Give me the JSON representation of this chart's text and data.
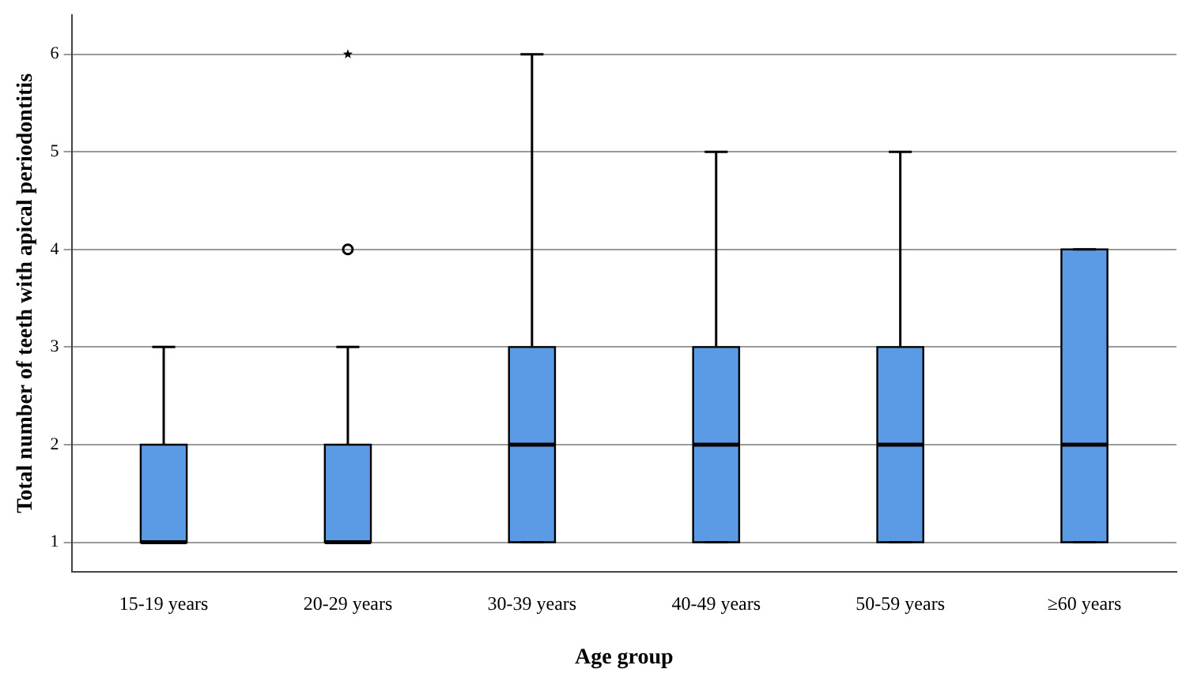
{
  "chart_data": {
    "type": "box",
    "xlabel": "Age group",
    "ylabel": "Total number of teeth with apical periodontitis",
    "categories": [
      "15-19 years",
      "20-29 years",
      "30-39 years",
      "40-49 years",
      "50-59 years",
      "≥60 years"
    ],
    "color": "#5b9be6",
    "boxes": [
      {
        "low": 1,
        "q1": 1,
        "median": 1,
        "q3": 2,
        "high": 3
      },
      {
        "low": 1,
        "q1": 1,
        "median": 1,
        "q3": 2,
        "high": 3,
        "outliers": [
          4,
          6
        ]
      },
      {
        "low": 1,
        "q1": 1,
        "median": 2,
        "q3": 3,
        "high": 6
      },
      {
        "low": 1,
        "q1": 1,
        "median": 2,
        "q3": 3,
        "high": 5
      },
      {
        "low": 1,
        "q1": 1,
        "median": 2,
        "q3": 3,
        "high": 5
      },
      {
        "low": 1,
        "q1": 1,
        "median": 2,
        "q3": 4,
        "high": 4
      }
    ],
    "ylim": [
      0.7,
      6.4
    ],
    "yticks": [
      1,
      2,
      3,
      4,
      5,
      6
    ],
    "grid": "y"
  }
}
